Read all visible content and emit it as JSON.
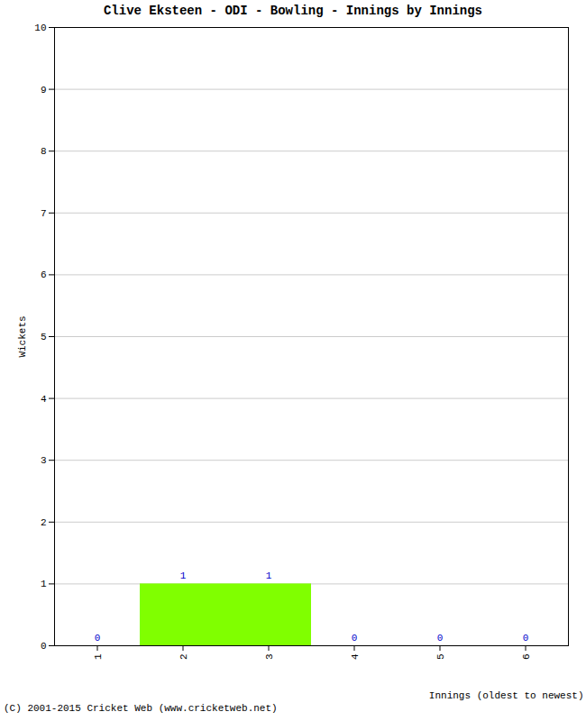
{
  "chart_data": {
    "type": "bar",
    "title": "Clive Eksteen - ODI - Bowling - Innings by Innings",
    "x_label": "Innings (oldest to newest)",
    "y_label": "Wickets",
    "caption": "(C) 2001-2015 Cricket Web (www.cricketweb.net)",
    "categories": [
      "1",
      "2",
      "3",
      "4",
      "5",
      "6"
    ],
    "values": [
      0,
      1,
      1,
      0,
      0,
      0
    ],
    "color": "#80ff00",
    "ylim": [
      0,
      10
    ],
    "yticks": [
      0,
      1,
      2,
      3,
      4,
      5,
      6,
      7,
      8,
      9,
      10
    ],
    "grid": true,
    "data_labels": true
  }
}
